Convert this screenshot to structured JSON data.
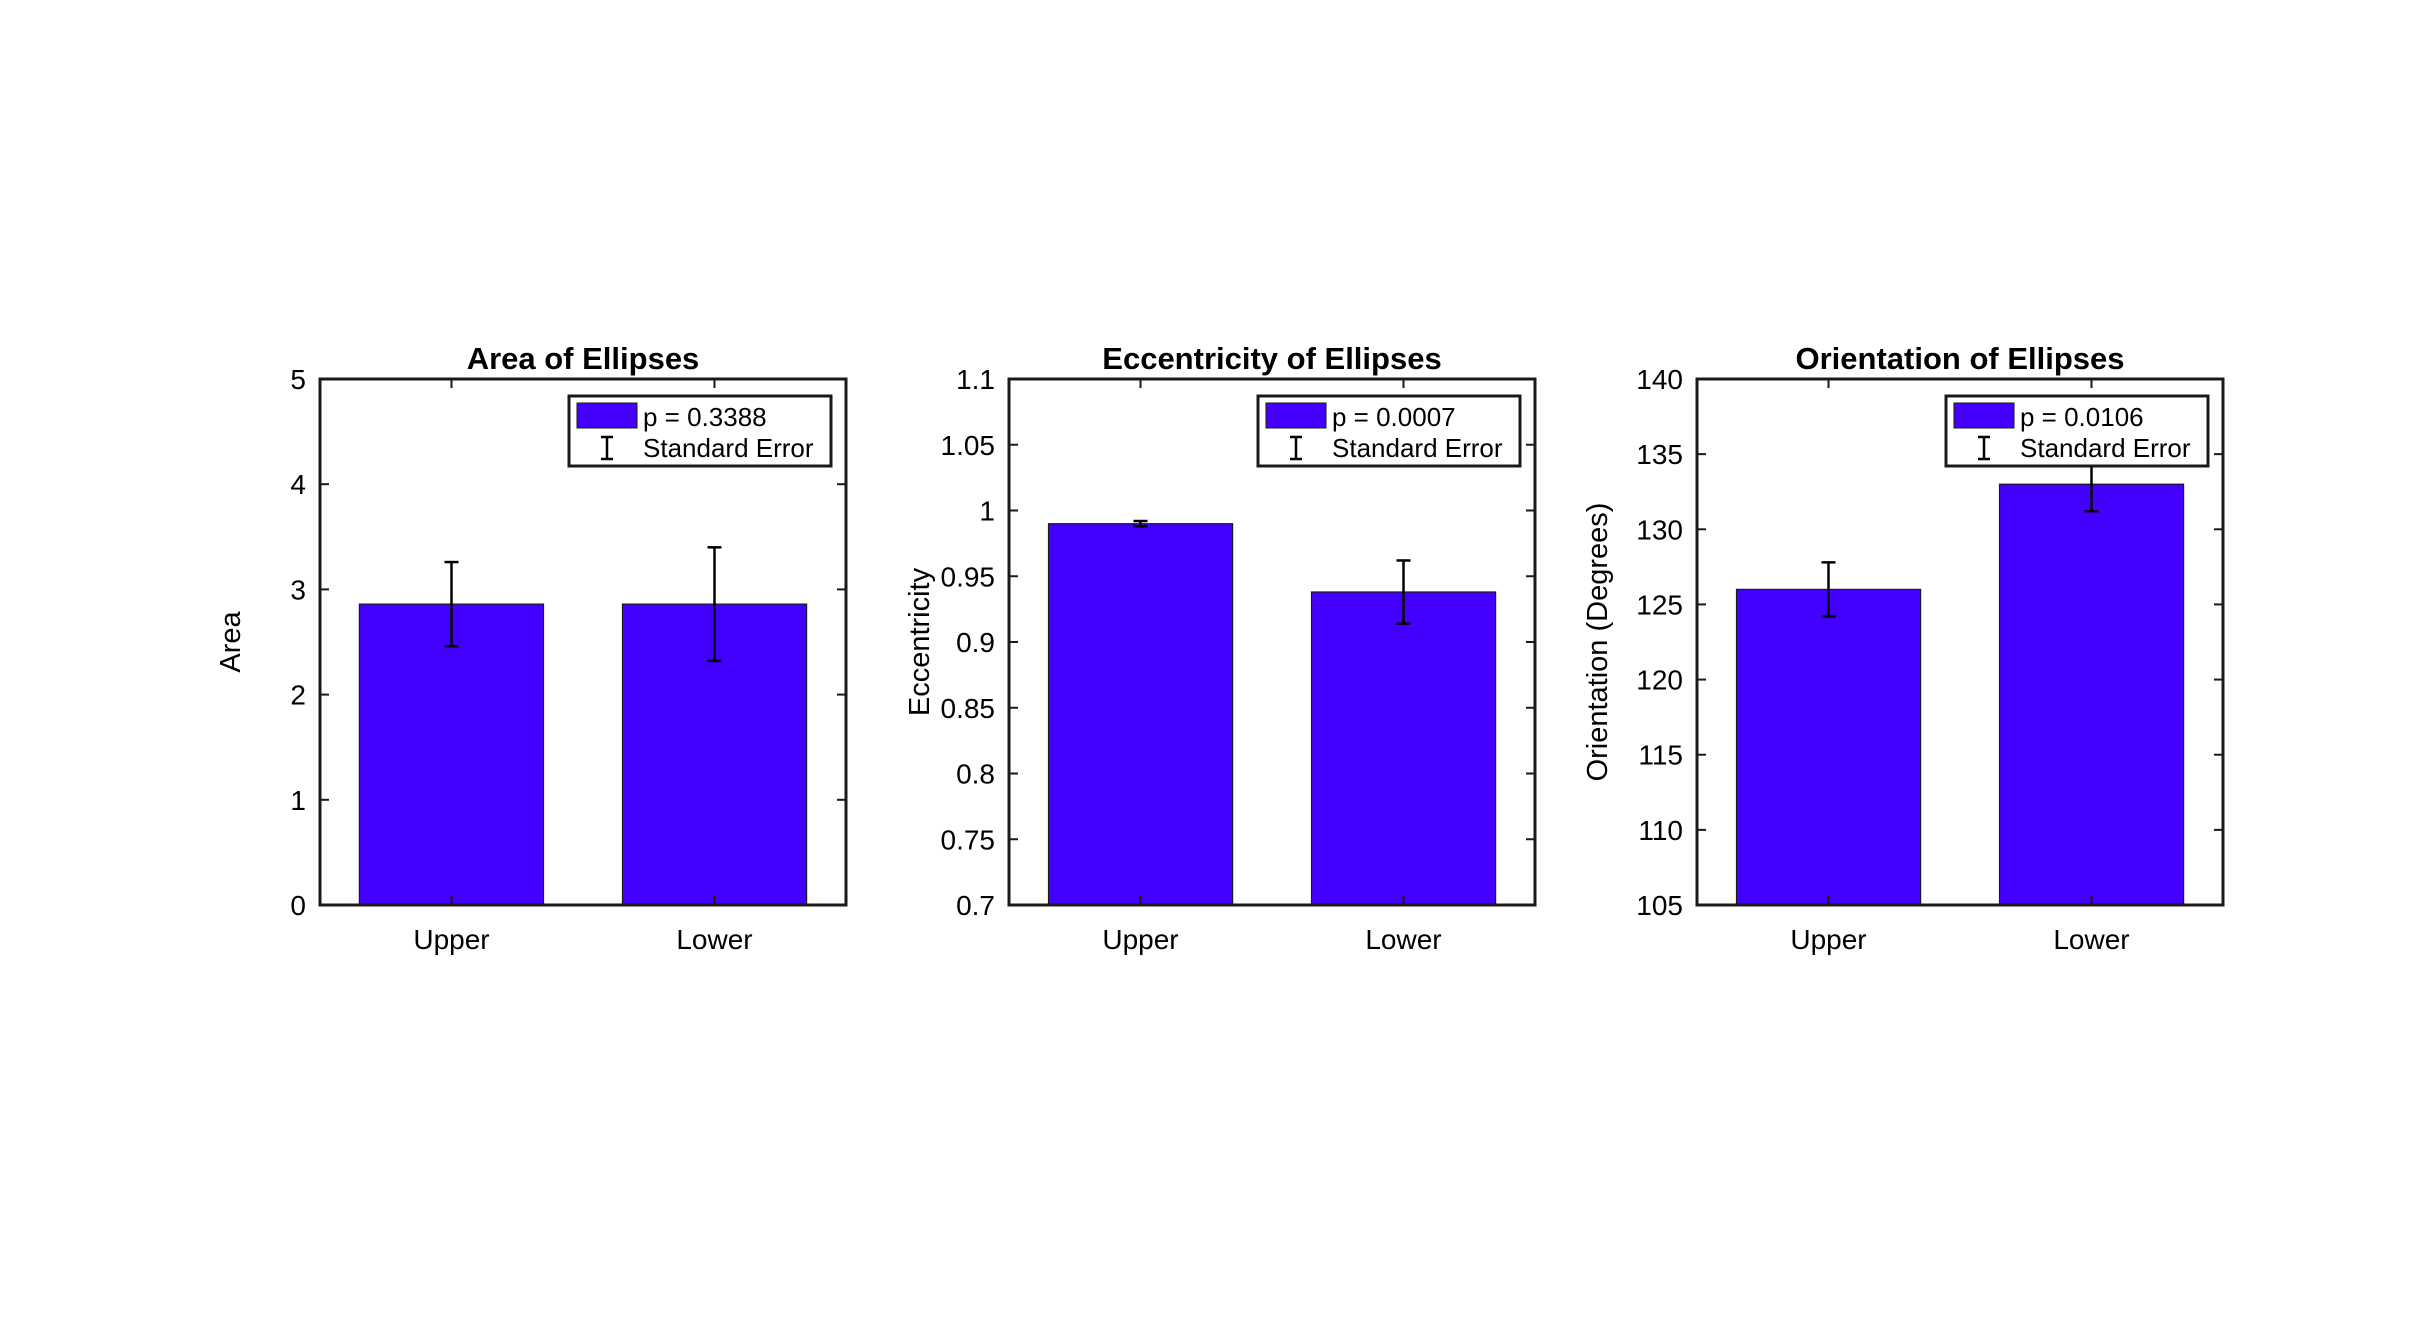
{
  "chart_data": [
    {
      "type": "bar",
      "title": "Area of Ellipses",
      "xlabel": "",
      "ylabel": "Area",
      "categories": [
        "Upper",
        "Lower"
      ],
      "values": [
        2.86,
        2.86
      ],
      "error": [
        0.4,
        0.54
      ],
      "ylim": [
        0,
        5
      ],
      "yticks": [
        0,
        1,
        2,
        3,
        4,
        5
      ],
      "ytick_labels": [
        "0",
        "1",
        "2",
        "3",
        "4",
        "5"
      ],
      "legend": {
        "position": "top-right",
        "bar_label": "p = 0.3388",
        "error_label": "Standard Error"
      },
      "bar_color": "#4400ff",
      "grid": false
    },
    {
      "type": "bar",
      "title": "Eccentricity of Ellipses",
      "xlabel": "",
      "ylabel": "Eccentricity",
      "categories": [
        "Upper",
        "Lower"
      ],
      "values": [
        0.99,
        0.938
      ],
      "error": [
        0.002,
        0.024
      ],
      "ylim": [
        0.7,
        1.1
      ],
      "yticks": [
        0.7,
        0.75,
        0.8,
        0.85,
        0.9,
        0.95,
        1.0,
        1.05,
        1.1
      ],
      "ytick_labels": [
        "0.7",
        "0.75",
        "0.8",
        "0.85",
        "0.9",
        "0.95",
        "1",
        "1.05",
        "1.1"
      ],
      "legend": {
        "position": "top-right",
        "bar_label": "p = 0.0007",
        "error_label": "Standard Error"
      },
      "bar_color": "#4400ff",
      "grid": false
    },
    {
      "type": "bar",
      "title": "Orientation of Ellipses",
      "xlabel": "",
      "ylabel": "Orientation (Degrees)",
      "categories": [
        "Upper",
        "Lower"
      ],
      "values": [
        126.0,
        133.0
      ],
      "error": [
        1.8,
        1.8
      ],
      "ylim": [
        105,
        140
      ],
      "yticks": [
        105,
        110,
        115,
        120,
        125,
        130,
        135,
        140
      ],
      "ytick_labels": [
        "105",
        "110",
        "115",
        "120",
        "125",
        "130",
        "135",
        "140"
      ],
      "legend": {
        "position": "top-right",
        "bar_label": "p = 0.0106",
        "error_label": "Standard Error"
      },
      "bar_color": "#4400ff",
      "grid": false
    }
  ]
}
